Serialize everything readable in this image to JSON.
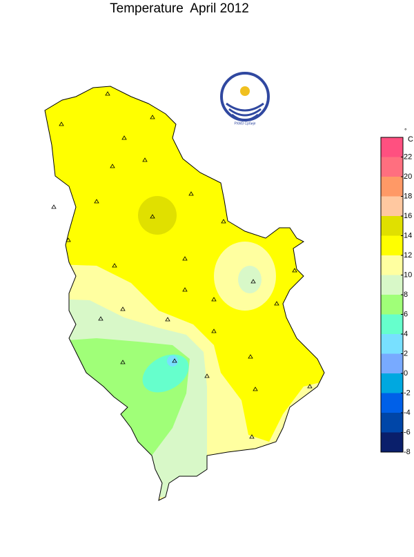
{
  "title": "Temperature  April 2012",
  "logo_text": "РХМЗ Србије",
  "legend": {
    "unit_symbol": "°",
    "unit": "C",
    "range": [
      -8,
      24
    ],
    "ticks": [
      22,
      20,
      18,
      16,
      14,
      12,
      10,
      8,
      6,
      4,
      2,
      0,
      -2,
      -4,
      -6,
      -8
    ],
    "colors": [
      "#0a1f6b",
      "#0046a8",
      "#0060e8",
      "#00a8e0",
      "#78aaff",
      "#78e0ff",
      "#66ffcc",
      "#a0ff78",
      "#d8f8c8",
      "#ffffa0",
      "#ffff00",
      "#e0e000",
      "#ffc8a0",
      "#ff9966",
      "#ff6f7f",
      "#ff5080"
    ]
  }
}
